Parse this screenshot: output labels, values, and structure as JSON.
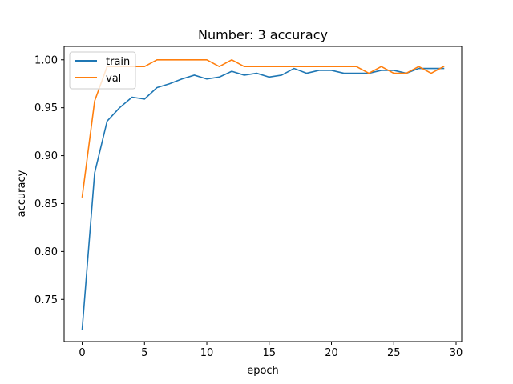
{
  "chart_data": {
    "type": "line",
    "title": "Number: 3 accuracy",
    "xlabel": "epoch",
    "ylabel": "accuracy",
    "xlim": [
      -1.45,
      30.45
    ],
    "ylim": [
      0.706,
      1.014
    ],
    "xticks": [
      0,
      5,
      10,
      15,
      20,
      25,
      30
    ],
    "yticks": [
      0.75,
      0.8,
      0.85,
      0.9,
      0.95,
      1.0
    ],
    "xtick_labels": [
      "0",
      "5",
      "10",
      "15",
      "20",
      "25",
      "30"
    ],
    "ytick_labels": [
      "0.75",
      "0.80",
      "0.85",
      "0.90",
      "0.95",
      "1.00"
    ],
    "grid": false,
    "legend_position": "top-left",
    "x": [
      0,
      1,
      2,
      3,
      4,
      5,
      6,
      7,
      8,
      9,
      10,
      11,
      12,
      13,
      14,
      15,
      16,
      17,
      18,
      19,
      20,
      21,
      22,
      23,
      24,
      25,
      26,
      27,
      28,
      29
    ],
    "series": [
      {
        "name": "train",
        "color": "#1f77b4",
        "values": [
          0.719,
          0.882,
          0.936,
          0.95,
          0.961,
          0.959,
          0.971,
          0.975,
          0.98,
          0.984,
          0.98,
          0.982,
          0.988,
          0.984,
          0.986,
          0.982,
          0.984,
          0.991,
          0.986,
          0.989,
          0.989,
          0.986,
          0.986,
          0.986,
          0.989,
          0.989,
          0.986,
          0.991,
          0.991,
          0.991
        ]
      },
      {
        "name": "val",
        "color": "#ff7f0e",
        "values": [
          0.857,
          0.957,
          0.993,
          0.993,
          0.993,
          0.993,
          1.0,
          1.0,
          1.0,
          1.0,
          1.0,
          0.993,
          1.0,
          0.993,
          0.993,
          0.993,
          0.993,
          0.993,
          0.993,
          0.993,
          0.993,
          0.993,
          0.993,
          0.986,
          0.993,
          0.986,
          0.986,
          0.993,
          0.986,
          0.993
        ]
      }
    ]
  }
}
